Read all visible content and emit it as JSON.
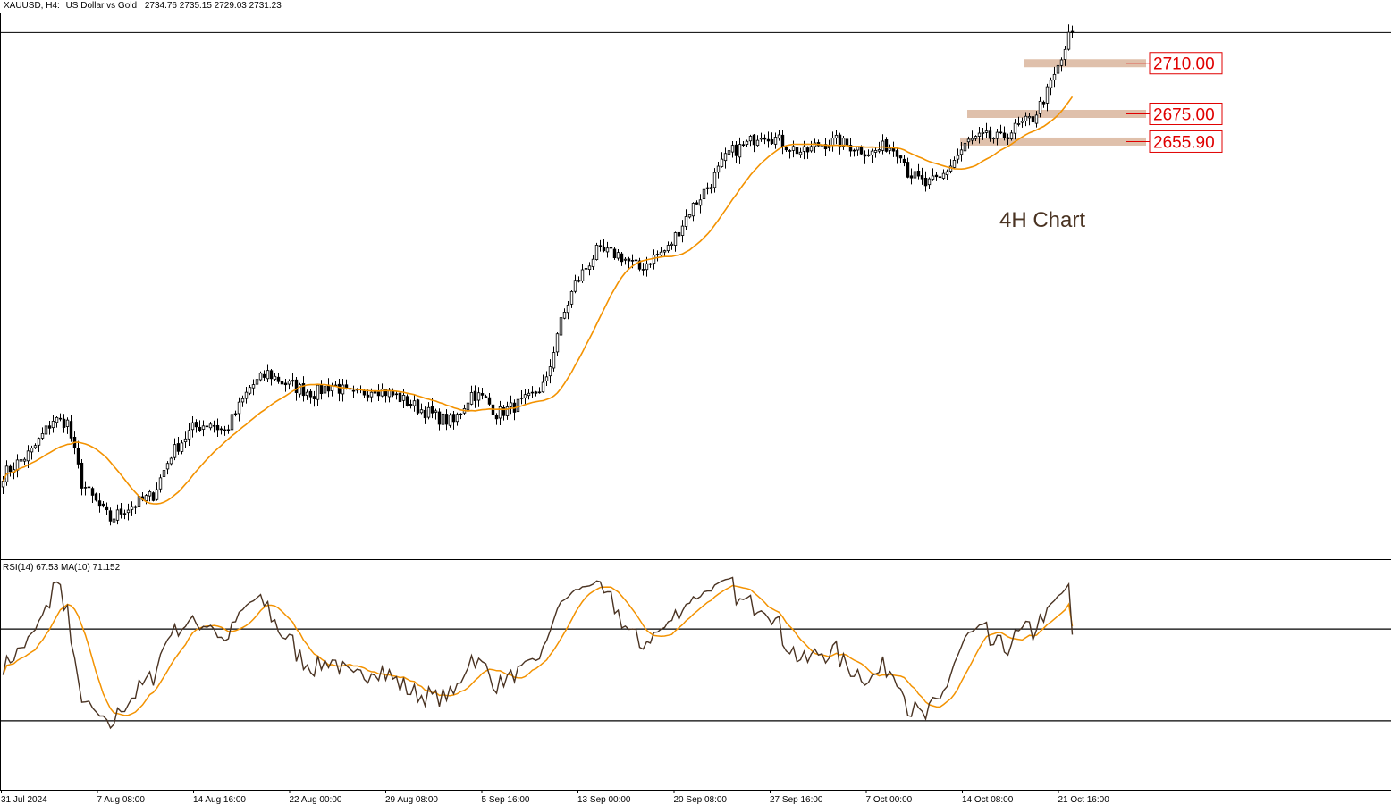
{
  "header": {
    "symbol": "XAUUSD, H4:",
    "description": "US Dollar vs Gold",
    "ohlc": "2734.76 2735.15 2729.03 2731.23"
  },
  "rsi_header": "RSI(14) 67.53 MA(10) 71.152",
  "annotation": "4H Chart",
  "colors": {
    "candle": "#000000",
    "ma_line": "#f39200",
    "rsi_line": "#4a3322",
    "level_band": "#dfc0ab",
    "level_text": "#e00000",
    "grid_line": "#000000"
  },
  "chart_data": [
    {
      "type": "candlestick",
      "title": "XAUUSD, H4: US Dollar vs Gold",
      "x_tick_labels": [
        "31 Jul 2024",
        "7 Aug 08:00",
        "14 Aug 16:00",
        "22 Aug 00:00",
        "29 Aug 08:00",
        "5 Sep 16:00",
        "13 Sep 00:00",
        "20 Sep 08:00",
        "27 Sep 16:00",
        "7 Oct 00:00",
        "14 Oct 08:00",
        "21 Oct 16:00"
      ],
      "ylim": [
        2370,
        2745
      ],
      "last_close": 2731.23,
      "levels": [
        {
          "label": "2710.00",
          "value": 2710.0
        },
        {
          "label": "2675.00",
          "value": 2675.0
        },
        {
          "label": "2655.90",
          "value": 2655.9
        }
      ],
      "anchors": [
        [
          0,
          2426
        ],
        [
          8,
          2442
        ],
        [
          14,
          2464
        ],
        [
          18,
          2462
        ],
        [
          22,
          2420
        ],
        [
          25,
          2410
        ],
        [
          30,
          2395
        ],
        [
          34,
          2402
        ],
        [
          42,
          2412
        ],
        [
          47,
          2440
        ],
        [
          53,
          2458
        ],
        [
          58,
          2462
        ],
        [
          62,
          2455
        ],
        [
          69,
          2486
        ],
        [
          74,
          2496
        ],
        [
          78,
          2490
        ],
        [
          82,
          2486
        ],
        [
          87,
          2482
        ],
        [
          92,
          2488
        ],
        [
          98,
          2480
        ],
        [
          104,
          2486
        ],
        [
          110,
          2480
        ],
        [
          116,
          2472
        ],
        [
          122,
          2465
        ],
        [
          126,
          2462
        ],
        [
          131,
          2482
        ],
        [
          135,
          2478
        ],
        [
          138,
          2468
        ],
        [
          142,
          2472
        ],
        [
          147,
          2478
        ],
        [
          152,
          2490
        ],
        [
          155,
          2524
        ],
        [
          160,
          2558
        ],
        [
          166,
          2580
        ],
        [
          172,
          2578
        ],
        [
          178,
          2568
        ],
        [
          182,
          2576
        ],
        [
          186,
          2582
        ],
        [
          192,
          2608
        ],
        [
          198,
          2628
        ],
        [
          203,
          2648
        ],
        [
          208,
          2654
        ],
        [
          212,
          2662
        ],
        [
          216,
          2658
        ],
        [
          220,
          2652
        ],
        [
          224,
          2648
        ],
        [
          228,
          2654
        ],
        [
          233,
          2656
        ],
        [
          238,
          2652
        ],
        [
          243,
          2648
        ],
        [
          247,
          2653
        ],
        [
          251,
          2649
        ],
        [
          253,
          2635
        ],
        [
          258,
          2626
        ],
        [
          262,
          2630
        ],
        [
          266,
          2643
        ],
        [
          270,
          2656
        ],
        [
          274,
          2659
        ],
        [
          279,
          2658
        ],
        [
          283,
          2665
        ],
        [
          288,
          2672
        ],
        [
          292,
          2690
        ],
        [
          296,
          2712
        ],
        [
          298,
          2728
        ],
        [
          299,
          2731.23
        ]
      ],
      "ma_period": 20
    },
    {
      "type": "line",
      "title": "RSI(14) 67.53 MA(10) 71.152",
      "ylim": [
        0,
        100
      ],
      "levels": [
        70,
        30
      ],
      "last_rsi": 67.53,
      "last_ma": 71.152
    }
  ]
}
